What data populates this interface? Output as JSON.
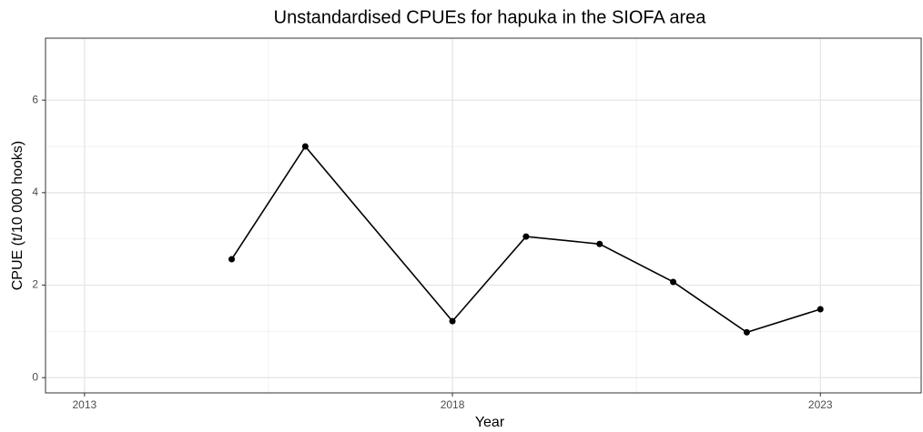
{
  "chart_data": {
    "type": "line",
    "title": "Unstandardised CPUEs for hapuka in the SIOFA area",
    "x_label": "Year",
    "y_label": "CPUE (t/10 000 hooks)",
    "x": [
      2015,
      2016,
      2018,
      2019,
      2020,
      2021,
      2022,
      2023
    ],
    "values": [
      2.56,
      5.0,
      1.22,
      3.05,
      2.89,
      2.07,
      0.98,
      1.48
    ],
    "color": "#000000",
    "xlim": [
      2012.47,
      2024.37
    ],
    "xticks": [
      2013,
      2018,
      2023
    ],
    "minor_xticks": [
      2015.5,
      2020.5
    ],
    "ylim": [
      -0.33,
      7.34
    ],
    "yticks": [
      0,
      2,
      4,
      6
    ],
    "minor_yticks": [
      1,
      3,
      5
    ],
    "grid": true
  }
}
